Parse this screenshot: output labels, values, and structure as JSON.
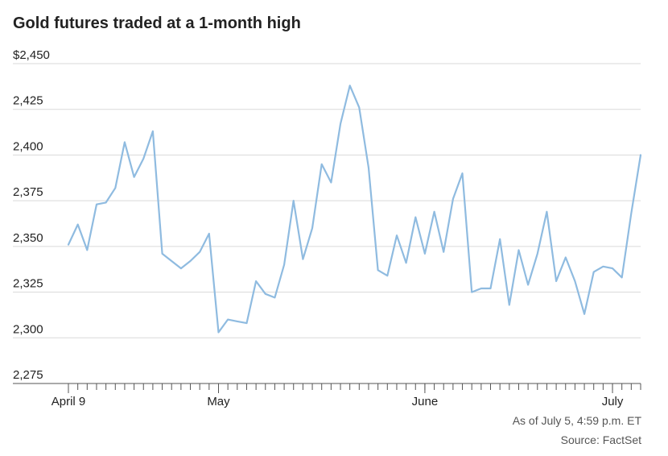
{
  "title": "Gold futures traded at a 1-month high",
  "footer": {
    "as_of": "As of July 5, 4:59 p.m. ET",
    "source": "Source: FactSet"
  },
  "colors": {
    "line": "#8fbbe0",
    "grid": "#d9d9d9",
    "text": "#222222"
  },
  "chart_data": {
    "type": "line",
    "title": "Gold futures traded at a 1-month high",
    "xlabel": "",
    "ylabel": "",
    "ylim": [
      2275,
      2450
    ],
    "yticks": [
      2450,
      2425,
      2400,
      2375,
      2350,
      2325,
      2300,
      2275
    ],
    "ytick_labels": [
      "$2,450",
      "2,425",
      "2,400",
      "2,375",
      "2,350",
      "2,325",
      "2,300",
      "2,275"
    ],
    "x_tick_labels": [
      {
        "label": "April 9",
        "index": 0
      },
      {
        "label": "May",
        "index": 16
      },
      {
        "label": "June",
        "index": 38
      },
      {
        "label": "July",
        "index": 58
      }
    ],
    "grid": true,
    "legend": "none",
    "series": [
      {
        "values": [
          2351,
          2362,
          2348,
          2373,
          2374,
          2382,
          2407,
          2388,
          2398,
          2413,
          2346,
          2342,
          2338,
          2342,
          2347,
          2357,
          2303,
          2310,
          2309,
          2308,
          2331,
          2324,
          2322,
          2340,
          2375,
          2343,
          2360,
          2395,
          2385,
          2417,
          2438,
          2426,
          2393,
          2337,
          2334,
          2356,
          2341,
          2366,
          2346,
          2369,
          2347,
          2376,
          2390,
          2325,
          2327,
          2327,
          2354,
          2318,
          2348,
          2329,
          2346,
          2369,
          2331,
          2344,
          2331,
          2313,
          2336,
          2339,
          2338,
          2333,
          2368,
          2400
        ]
      }
    ]
  }
}
